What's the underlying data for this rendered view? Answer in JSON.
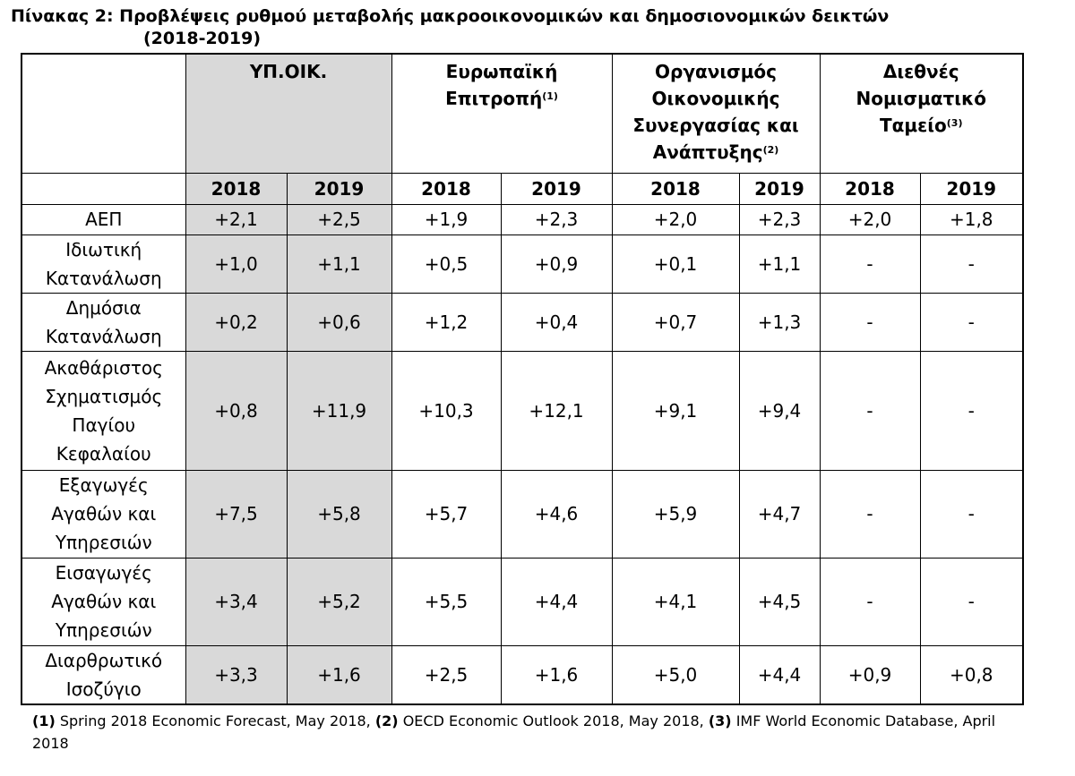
{
  "title": {
    "line1": "Πίνακας 2: Προβλέψεις ρυθμού μεταβολής μακροοικονομικών και δημοσιονομικών δεικτών",
    "line2": "(2018-2019)"
  },
  "orgs": [
    {
      "name": "ΥΠ.ΟΙΚ.",
      "note": ""
    },
    {
      "name": "Ευρωπαϊκή Επιτροπή",
      "line1": "Ευρωπαϊκή",
      "line2": "Επιτροπή",
      "note": "(1)"
    },
    {
      "name": "Οργανισμός Οικονομικής Συνεργασίας και Ανάπτυξης",
      "line1": "Οργανισμός",
      "line2": "Οικονομικής",
      "line3": "Συνεργασίας και",
      "line4": "Ανάπτυξης",
      "note": "(2)"
    },
    {
      "name": "Διεθνές Νομισματικό Ταμείο",
      "line1": "Διεθνές",
      "line2": "Νομισματικό",
      "line3": "Ταμείο",
      "note": "(3)"
    }
  ],
  "years": [
    "2018",
    "2019"
  ],
  "rows": [
    {
      "label_lines": [
        "ΑΕΠ"
      ],
      "values": [
        "+2,1",
        "+2,5",
        "+1,9",
        "+2,3",
        "+2,0",
        "+2,3",
        "+2,0",
        "+1,8"
      ]
    },
    {
      "label_lines": [
        "Ιδιωτική",
        "Κατανάλωση"
      ],
      "values": [
        "+1,0",
        "+1,1",
        "+0,5",
        "+0,9",
        "+0,1",
        "+1,1",
        "-",
        "-"
      ]
    },
    {
      "label_lines": [
        "Δημόσια",
        "Κατανάλωση"
      ],
      "values": [
        "+0,2",
        "+0,6",
        "+1,2",
        "+0,4",
        "+0,7",
        "+1,3",
        "-",
        "-"
      ]
    },
    {
      "label_lines": [
        "Ακαθάριστος",
        "Σχηματισμός",
        "Παγίου",
        "Κεφαλαίου"
      ],
      "values": [
        "+0,8",
        "+11,9",
        "+10,3",
        "+12,1",
        "+9,1",
        "+9,4",
        "-",
        "-"
      ]
    },
    {
      "label_lines": [
        "Εξαγωγές",
        "Αγαθών και",
        "Υπηρεσιών"
      ],
      "values": [
        "+7,5",
        "+5,8",
        "+5,7",
        "+4,6",
        "+5,9",
        "+4,7",
        "-",
        "-"
      ]
    },
    {
      "label_lines": [
        "Εισαγωγές",
        "Αγαθών και",
        "Υπηρεσιών"
      ],
      "values": [
        "+3,4",
        "+5,2",
        "+5,5",
        "+4,4",
        "+4,1",
        "+4,5",
        "-",
        "-"
      ]
    },
    {
      "label_lines": [
        "Διαρθρωτικό",
        "Ισοζύγιο"
      ],
      "values": [
        "+3,3",
        "+1,6",
        "+2,5",
        "+1,6",
        "+5,0",
        "+4,4",
        "+0,9",
        "+0,8"
      ]
    }
  ],
  "footnote": {
    "n1": "(1)",
    "t1": " Spring 2018 Economic Forecast, May 2018, ",
    "n2": "(2)",
    "t2": " OECD Economic Outlook 2018, May 2018, ",
    "n3": "(3)",
    "t3": " IMF World Economic Database, April 2018"
  }
}
